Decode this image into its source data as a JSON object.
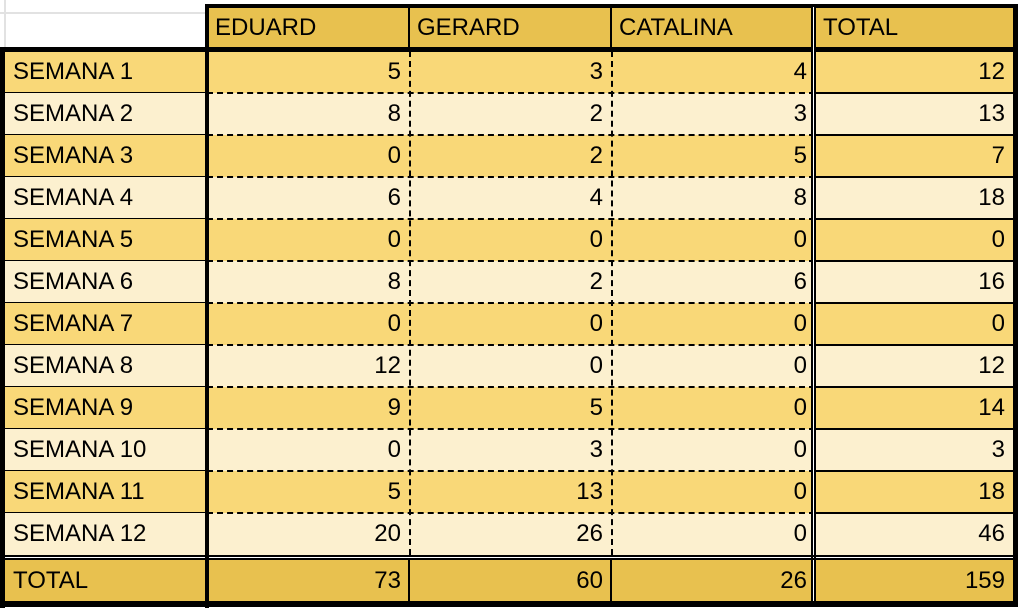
{
  "header": {
    "columns": [
      "EDUARD",
      "GERARD",
      "CATALINA",
      "TOTAL"
    ]
  },
  "rows": [
    {
      "label": "SEMANA 1",
      "values": [
        5,
        3,
        4,
        12
      ]
    },
    {
      "label": "SEMANA 2",
      "values": [
        8,
        2,
        3,
        13
      ]
    },
    {
      "label": "SEMANA 3",
      "values": [
        0,
        2,
        5,
        7
      ]
    },
    {
      "label": "SEMANA 4",
      "values": [
        6,
        4,
        8,
        18
      ]
    },
    {
      "label": "SEMANA 5",
      "values": [
        0,
        0,
        0,
        0
      ]
    },
    {
      "label": "SEMANA 6",
      "values": [
        8,
        2,
        6,
        16
      ]
    },
    {
      "label": "SEMANA 7",
      "values": [
        0,
        0,
        0,
        0
      ]
    },
    {
      "label": "SEMANA 8",
      "values": [
        12,
        0,
        0,
        12
      ]
    },
    {
      "label": "SEMANA 9",
      "values": [
        9,
        5,
        0,
        14
      ]
    },
    {
      "label": "SEMANA 10",
      "values": [
        0,
        3,
        0,
        3
      ]
    },
    {
      "label": "SEMANA 11",
      "values": [
        5,
        13,
        0,
        18
      ]
    },
    {
      "label": "SEMANA 12",
      "values": [
        20,
        26,
        0,
        46
      ]
    }
  ],
  "total_row": {
    "label": "TOTAL",
    "values": [
      73,
      60,
      26,
      159
    ]
  },
  "colors": {
    "header": "#e8c14f",
    "row_dark": "#f9d878",
    "row_light": "#fcf0cf",
    "total": "#e8c14f"
  }
}
